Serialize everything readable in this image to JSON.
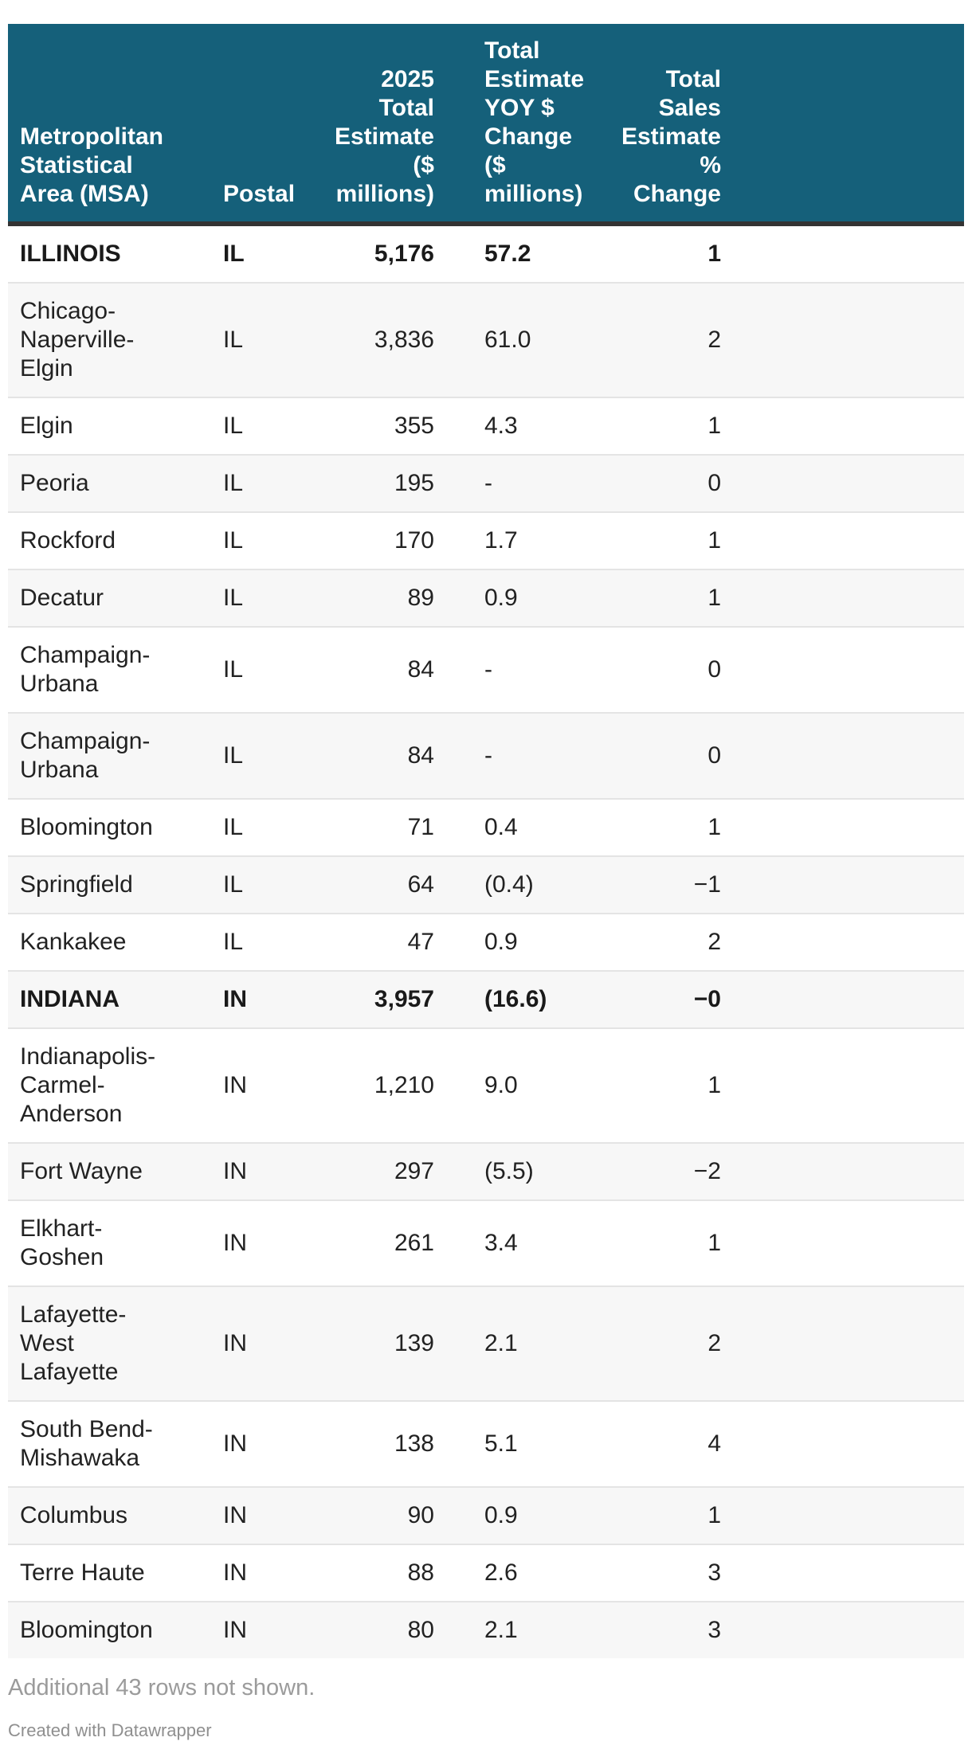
{
  "colors": {
    "header_bg": "#15607a",
    "header_text": "#ffffff",
    "header_rule": "#333333",
    "alt_row_bg": "#f7f7f7",
    "row_border": "#e4e4e4",
    "body_text": "#222222",
    "footer_text": "#9b9b9b"
  },
  "table": {
    "columns": [
      {
        "id": "msa",
        "label": "Metropolitan\nStatistical\nArea (MSA)",
        "align": "left"
      },
      {
        "id": "postal",
        "label": "Postal",
        "align": "left"
      },
      {
        "id": "est",
        "label": "2025\nTotal\nEstimate\n($\nmillions)",
        "align": "right"
      },
      {
        "id": "yoy",
        "label": "Total\nEstimate\nYOY $\nChange\n($\nmillions)",
        "align": "left"
      },
      {
        "id": "pct",
        "label": "Total\nSales\nEstimate\n%\nChange",
        "align": "right"
      },
      {
        "id": "spacer",
        "label": "",
        "align": "left"
      }
    ],
    "rows": [
      {
        "msa": "ILLINOIS",
        "postal": "IL",
        "est": "5,176",
        "yoy": "57.2",
        "pct": "1",
        "bold": true
      },
      {
        "msa": "Chicago-\nNaperville-\nElgin",
        "postal": "IL",
        "est": "3,836",
        "yoy": "61.0",
        "pct": "2",
        "bold": false
      },
      {
        "msa": "Elgin",
        "postal": "IL",
        "est": "355",
        "yoy": "4.3",
        "pct": "1",
        "bold": false
      },
      {
        "msa": "Peoria",
        "postal": "IL",
        "est": "195",
        "yoy": "-",
        "pct": "0",
        "bold": false
      },
      {
        "msa": "Rockford",
        "postal": "IL",
        "est": "170",
        "yoy": "1.7",
        "pct": "1",
        "bold": false
      },
      {
        "msa": "Decatur",
        "postal": "IL",
        "est": "89",
        "yoy": "0.9",
        "pct": "1",
        "bold": false
      },
      {
        "msa": "Champaign-\nUrbana",
        "postal": "IL",
        "est": "84",
        "yoy": "-",
        "pct": "0",
        "bold": false
      },
      {
        "msa": "Champaign-\nUrbana",
        "postal": "IL",
        "est": "84",
        "yoy": "-",
        "pct": "0",
        "bold": false
      },
      {
        "msa": "Bloomington",
        "postal": "IL",
        "est": "71",
        "yoy": "0.4",
        "pct": "1",
        "bold": false
      },
      {
        "msa": "Springfield",
        "postal": "IL",
        "est": "64",
        "yoy": "(0.4)",
        "pct": "−1",
        "bold": false
      },
      {
        "msa": "Kankakee",
        "postal": "IL",
        "est": "47",
        "yoy": "0.9",
        "pct": "2",
        "bold": false
      },
      {
        "msa": "INDIANA",
        "postal": "IN",
        "est": "3,957",
        "yoy": "(16.6)",
        "pct": "−0",
        "bold": true
      },
      {
        "msa": "Indianapolis-\nCarmel-\nAnderson",
        "postal": "IN",
        "est": "1,210",
        "yoy": "9.0",
        "pct": "1",
        "bold": false
      },
      {
        "msa": "Fort Wayne",
        "postal": "IN",
        "est": "297",
        "yoy": "(5.5)",
        "pct": "−2",
        "bold": false
      },
      {
        "msa": "Elkhart-\nGoshen",
        "postal": "IN",
        "est": "261",
        "yoy": "3.4",
        "pct": "1",
        "bold": false
      },
      {
        "msa": "Lafayette-\nWest\nLafayette",
        "postal": "IN",
        "est": "139",
        "yoy": "2.1",
        "pct": "2",
        "bold": false
      },
      {
        "msa": "South Bend-\nMishawaka",
        "postal": "IN",
        "est": "138",
        "yoy": "5.1",
        "pct": "4",
        "bold": false
      },
      {
        "msa": "Columbus",
        "postal": "IN",
        "est": "90",
        "yoy": "0.9",
        "pct": "1",
        "bold": false
      },
      {
        "msa": "Terre Haute",
        "postal": "IN",
        "est": "88",
        "yoy": "2.6",
        "pct": "3",
        "bold": false
      },
      {
        "msa": "Bloomington",
        "postal": "IN",
        "est": "80",
        "yoy": "2.1",
        "pct": "3",
        "bold": false
      }
    ]
  },
  "footer": {
    "note": "Additional 43 rows not shown.",
    "credit": "Created with Datawrapper"
  },
  "chart_data": {
    "type": "table",
    "columns": [
      "Metropolitan Statistical Area (MSA)",
      "Postal",
      "2025 Total Estimate ($ millions)",
      "Total Estimate YOY $ Change ($ millions)",
      "Total Sales Estimate % Change"
    ],
    "rows": [
      [
        "ILLINOIS",
        "IL",
        "5,176",
        "57.2",
        "1"
      ],
      [
        "Chicago-Naperville-Elgin",
        "IL",
        "3,836",
        "61.0",
        "2"
      ],
      [
        "Elgin",
        "IL",
        "355",
        "4.3",
        "1"
      ],
      [
        "Peoria",
        "IL",
        "195",
        "-",
        "0"
      ],
      [
        "Rockford",
        "IL",
        "170",
        "1.7",
        "1"
      ],
      [
        "Decatur",
        "IL",
        "89",
        "0.9",
        "1"
      ],
      [
        "Champaign-Urbana",
        "IL",
        "84",
        "-",
        "0"
      ],
      [
        "Champaign-Urbana",
        "IL",
        "84",
        "-",
        "0"
      ],
      [
        "Bloomington",
        "IL",
        "71",
        "0.4",
        "1"
      ],
      [
        "Springfield",
        "IL",
        "64",
        "(0.4)",
        "−1"
      ],
      [
        "Kankakee",
        "IL",
        "47",
        "0.9",
        "2"
      ],
      [
        "INDIANA",
        "IN",
        "3,957",
        "(16.6)",
        "−0"
      ],
      [
        "Indianapolis-Carmel-Anderson",
        "IN",
        "1,210",
        "9.0",
        "1"
      ],
      [
        "Fort Wayne",
        "IN",
        "297",
        "(5.5)",
        "−2"
      ],
      [
        "Elkhart-Goshen",
        "IN",
        "261",
        "3.4",
        "1"
      ],
      [
        "Lafayette-West Lafayette",
        "IN",
        "139",
        "2.1",
        "2"
      ],
      [
        "South Bend-Mishawaka",
        "IN",
        "138",
        "5.1",
        "4"
      ],
      [
        "Columbus",
        "IN",
        "90",
        "0.9",
        "1"
      ],
      [
        "Terre Haute",
        "IN",
        "88",
        "2.6",
        "3"
      ],
      [
        "Bloomington",
        "IN",
        "80",
        "2.1",
        "3"
      ]
    ],
    "bold_rows": [
      0,
      11
    ],
    "notes": "Additional 43 rows not shown.",
    "attribution": "Created with Datawrapper"
  }
}
